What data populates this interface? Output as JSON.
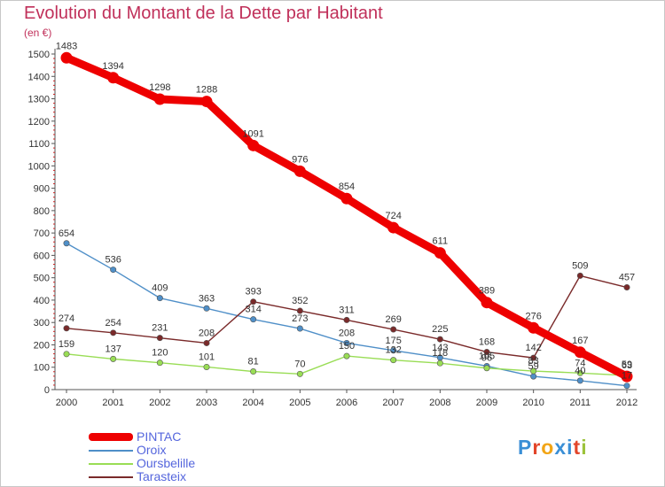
{
  "header": {
    "title": "Evolution du Montant de la Dette par Habitant",
    "unit": "(en €)"
  },
  "logo": {
    "text": "Proxiti"
  },
  "chart_data": {
    "type": "line",
    "title": "Evolution du Montant de la Dette par Habitant",
    "ylabel": "(en €)",
    "xlabel": "",
    "x": [
      "2000",
      "2001",
      "2002",
      "2003",
      "2004",
      "2005",
      "2006",
      "2007",
      "2008",
      "2009",
      "2010",
      "2011",
      "2012"
    ],
    "ylim": [
      0,
      1500
    ],
    "yticks": [
      0,
      100,
      200,
      300,
      400,
      500,
      600,
      700,
      800,
      900,
      1000,
      1100,
      1200,
      1300,
      1400,
      1500
    ],
    "grid": false,
    "legend_position": "bottom-left",
    "series": [
      {
        "name": "PINTAC",
        "color": "#ee0000",
        "values": [
          1483,
          1394,
          1298,
          1288,
          1091,
          976,
          854,
          724,
          611,
          389,
          276,
          167,
          59
        ]
      },
      {
        "name": "Oroix",
        "color": "#4f8fc8",
        "values": [
          654,
          536,
          409,
          363,
          314,
          273,
          208,
          175,
          143,
          105,
          59,
          40,
          17
        ]
      },
      {
        "name": "Oursbelille",
        "color": "#99dd55",
        "values": [
          159,
          137,
          120,
          101,
          81,
          70,
          150,
          132,
          118,
          96,
          83,
          74,
          63
        ]
      },
      {
        "name": "Tarasteix",
        "color": "#7a2a2a",
        "values": [
          274,
          254,
          231,
          208,
          393,
          352,
          311,
          269,
          225,
          168,
          142,
          509,
          457
        ]
      }
    ]
  }
}
